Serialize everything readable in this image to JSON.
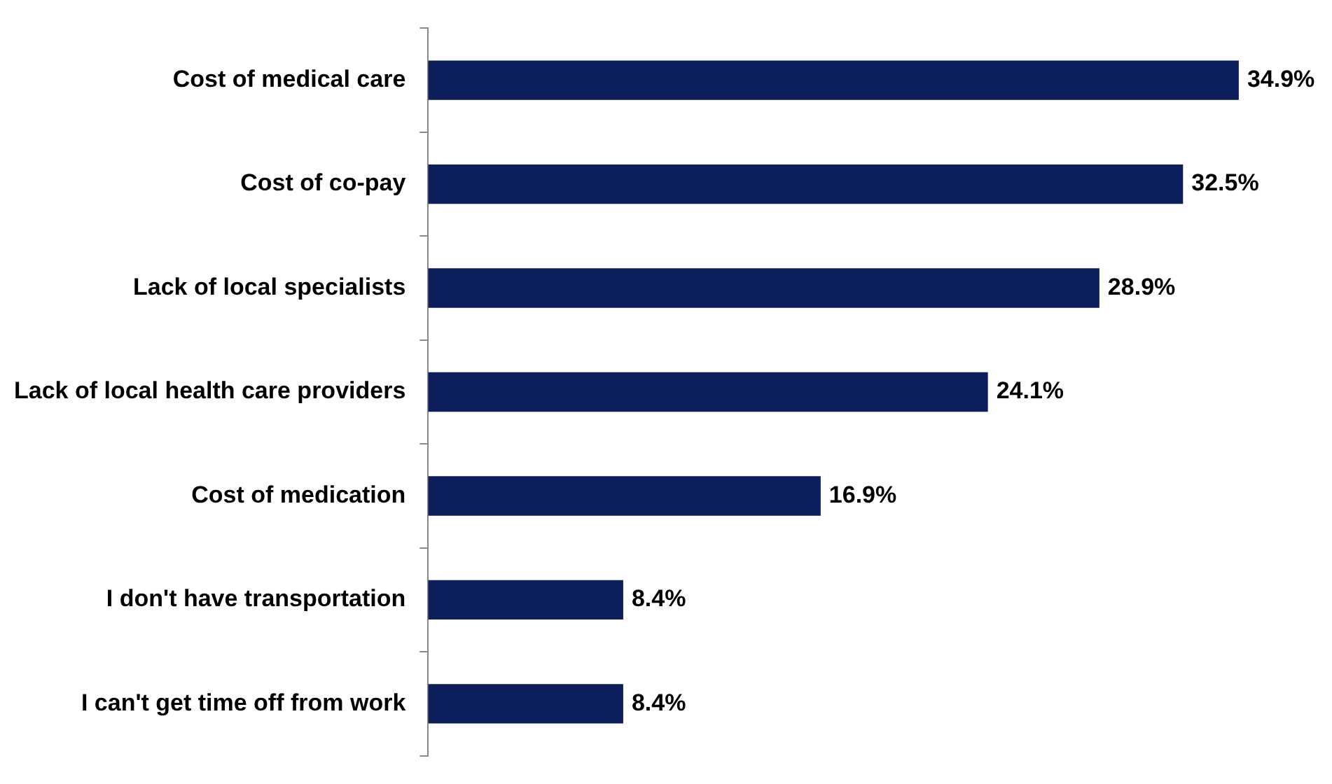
{
  "chart_data": {
    "type": "bar",
    "orientation": "horizontal",
    "categories": [
      "Cost of medical care",
      "Cost of co-pay",
      "Lack of local specialists",
      "Lack of local health care providers",
      "Cost of medication",
      "I don't have transportation",
      "I can't get time off from work"
    ],
    "values": [
      34.9,
      32.5,
      28.9,
      24.1,
      16.9,
      8.4,
      8.4
    ],
    "value_labels": [
      "34.9%",
      "32.5%",
      "28.9%",
      "24.1%",
      "16.9%",
      "8.4%",
      "8.4%"
    ],
    "color": "#0c1f5c",
    "legend": false
  }
}
